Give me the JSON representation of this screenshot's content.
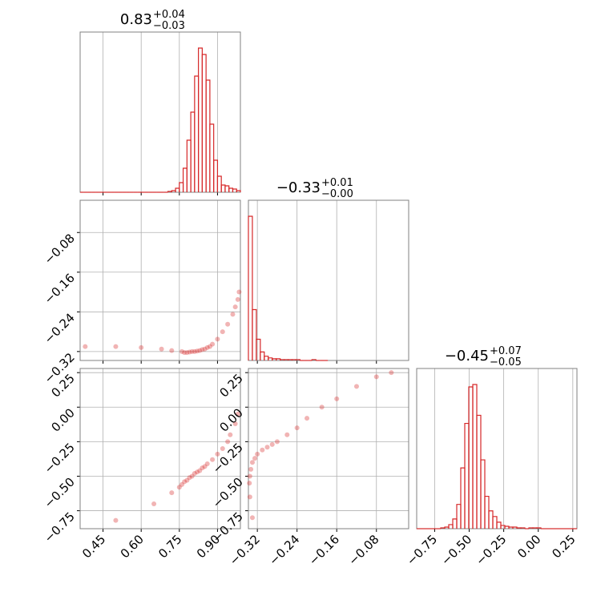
{
  "chart_data": [
    {
      "type": "histogram",
      "title": {
        "value": "0.83",
        "plus": "+0.04",
        "minus": "−0.03"
      },
      "color": "#d62728",
      "xlim": [
        0.36,
        0.99
      ],
      "xticks": [
        0.45,
        {
          "value": 0.6,
          "label": "0.60"
        },
        0.75,
        {
          "value": 0.9,
          "label": "0.90"
        }
      ],
      "tick_labels": false,
      "grid": true,
      "bins": [
        0.36,
        0.375,
        0.39,
        0.405,
        0.42,
        0.435,
        0.45,
        0.465,
        0.48,
        0.495,
        0.51,
        0.525,
        0.54,
        0.555,
        0.57,
        0.585,
        0.6,
        0.615,
        0.63,
        0.645,
        0.66,
        0.675,
        0.69,
        0.705,
        0.72,
        0.735,
        0.75,
        0.765,
        0.78,
        0.795,
        0.81,
        0.825,
        0.84,
        0.855,
        0.87,
        0.885,
        0.9,
        0.915,
        0.93,
        0.945,
        0.96,
        0.975,
        0.99
      ],
      "counts": [
        0,
        0,
        0,
        0,
        0,
        0,
        0,
        0,
        0,
        0,
        0,
        0,
        0,
        0,
        0,
        0,
        0,
        0,
        0,
        0,
        0,
        0,
        0,
        1,
        2,
        5,
        12,
        30,
        65,
        100,
        145,
        180,
        172,
        140,
        85,
        40,
        20,
        9,
        8,
        5,
        4,
        2
      ]
    },
    {
      "type": "scatter",
      "color": "#d62728",
      "grid": true,
      "xlim": [
        0.36,
        0.99
      ],
      "xticks": [
        0.45,
        {
          "value": 0.6,
          "label": "0.60"
        },
        0.75,
        {
          "value": 0.9,
          "label": "0.90"
        }
      ],
      "tick_labels": false,
      "ylim": [
        -0.338,
        -0.015
      ],
      "yticks": [
        {
          "value": -0.32,
          "label": "−0.32"
        },
        {
          "value": -0.24,
          "label": "−0.24"
        },
        {
          "value": -0.16,
          "label": "−0.16"
        },
        {
          "value": -0.08,
          "label": "−0.08"
        }
      ],
      "x": [
        0.38,
        0.5,
        0.6,
        0.68,
        0.72,
        0.76,
        0.77,
        0.78,
        0.79,
        0.8,
        0.81,
        0.82,
        0.83,
        0.84,
        0.85,
        0.86,
        0.87,
        0.88,
        0.9,
        0.92,
        0.94,
        0.96,
        0.97,
        0.98,
        0.985
      ],
      "y": [
        -0.31,
        -0.31,
        -0.312,
        -0.315,
        -0.318,
        -0.32,
        -0.322,
        -0.322,
        -0.321,
        -0.32,
        -0.32,
        -0.319,
        -0.318,
        -0.316,
        -0.315,
        -0.312,
        -0.31,
        -0.305,
        -0.295,
        -0.28,
        -0.265,
        -0.245,
        -0.23,
        -0.215,
        -0.2
      ]
    },
    {
      "type": "histogram",
      "title": {
        "value": "−0.33",
        "plus": "+0.01",
        "minus": "−0.00"
      },
      "color": "#d62728",
      "xlim": [
        -0.338,
        -0.015
      ],
      "xticks": [
        {
          "value": -0.32,
          "label": "−0.32"
        },
        {
          "value": -0.24,
          "label": "−0.24"
        },
        {
          "value": -0.16,
          "label": "−0.16"
        },
        {
          "value": -0.08,
          "label": "−0.08"
        }
      ],
      "tick_labels": false,
      "grid": true,
      "bins": [
        -0.338,
        -0.33,
        -0.322,
        -0.314,
        -0.306,
        -0.298,
        -0.29,
        -0.282,
        -0.274,
        -0.266,
        -0.258,
        -0.25,
        -0.242,
        -0.234,
        -0.226,
        -0.218,
        -0.21,
        -0.202,
        -0.194,
        -0.186,
        -0.178
      ],
      "counts": [
        170,
        60,
        25,
        10,
        5,
        3,
        2,
        2,
        1,
        1,
        1,
        1,
        1,
        0,
        0,
        0,
        1,
        0,
        0,
        0
      ]
    },
    {
      "type": "scatter",
      "color": "#d62728",
      "grid": true,
      "xlim": [
        0.36,
        0.99
      ],
      "xticks": [
        0.45,
        {
          "value": 0.6,
          "label": "0.60"
        },
        0.75,
        {
          "value": 0.9,
          "label": "0.90"
        }
      ],
      "tick_labels": true,
      "ylim": [
        -0.88,
        0.28
      ],
      "yticks": [
        {
          "value": -0.75,
          "label": "−0.75"
        },
        {
          "value": -0.5,
          "label": "−0.50"
        },
        {
          "value": -0.25,
          "label": "−0.25"
        },
        {
          "value": 0,
          "label": "0.00"
        },
        0.25
      ],
      "x": [
        0.5,
        0.65,
        0.72,
        0.75,
        0.76,
        0.77,
        0.78,
        0.79,
        0.8,
        0.81,
        0.82,
        0.83,
        0.84,
        0.85,
        0.86,
        0.88,
        0.9,
        0.92,
        0.94,
        0.95,
        0.97,
        0.98
      ],
      "y": [
        -0.82,
        -0.7,
        -0.62,
        -0.58,
        -0.56,
        -0.54,
        -0.53,
        -0.51,
        -0.5,
        -0.48,
        -0.47,
        -0.46,
        -0.44,
        -0.43,
        -0.41,
        -0.38,
        -0.34,
        -0.3,
        -0.25,
        -0.2,
        -0.12,
        -0.05
      ]
    },
    {
      "type": "scatter",
      "color": "#d62728",
      "grid": true,
      "xlim": [
        -0.338,
        -0.015
      ],
      "xticks": [
        {
          "value": -0.32,
          "label": "−0.32"
        },
        {
          "value": -0.24,
          "label": "−0.24"
        },
        {
          "value": -0.16,
          "label": "−0.16"
        },
        {
          "value": -0.08,
          "label": "−0.08"
        }
      ],
      "tick_labels": true,
      "ylim": [
        -0.88,
        0.28
      ],
      "yticks": [
        {
          "value": -0.75,
          "label": "−0.75"
        },
        {
          "value": -0.5,
          "label": "−0.50"
        },
        {
          "value": -0.25,
          "label": "−0.25"
        },
        {
          "value": 0,
          "label": "0.00"
        },
        0.25
      ],
      "x": [
        -0.33,
        -0.335,
        -0.336,
        -0.335,
        -0.333,
        -0.33,
        -0.325,
        -0.32,
        -0.31,
        -0.3,
        -0.29,
        -0.28,
        -0.26,
        -0.24,
        -0.22,
        -0.19,
        -0.16,
        -0.12,
        -0.08,
        -0.05
      ],
      "y": [
        -0.8,
        -0.65,
        -0.55,
        -0.5,
        -0.45,
        -0.4,
        -0.37,
        -0.34,
        -0.31,
        -0.29,
        -0.27,
        -0.25,
        -0.2,
        -0.15,
        -0.08,
        0.0,
        0.06,
        0.15,
        0.22,
        0.25
      ]
    },
    {
      "type": "histogram",
      "title": {
        "value": "−0.45",
        "plus": "+0.07",
        "minus": "−0.05"
      },
      "color": "#d62728",
      "xlim": [
        -0.88,
        0.28
      ],
      "xticks": [
        {
          "value": -0.75,
          "label": "−0.75"
        },
        {
          "value": -0.5,
          "label": "−0.50"
        },
        {
          "value": -0.25,
          "label": "−0.25"
        },
        {
          "value": 0,
          "label": "0.00"
        },
        0.25
      ],
      "tick_labels": true,
      "grid": true,
      "bins": [
        -0.88,
        -0.851,
        -0.822,
        -0.793,
        -0.764,
        -0.735,
        -0.706,
        -0.677,
        -0.648,
        -0.619,
        -0.59,
        -0.561,
        -0.532,
        -0.503,
        -0.474,
        -0.445,
        -0.416,
        -0.387,
        -0.358,
        -0.329,
        -0.3,
        -0.271,
        -0.242,
        -0.213,
        -0.184,
        -0.155,
        -0.126,
        -0.097,
        -0.068,
        -0.039,
        -0.01,
        0.019,
        0.048,
        0.077,
        0.106,
        0.135,
        0.164,
        0.193,
        0.222,
        0.251,
        0.28
      ],
      "counts": [
        0,
        0,
        0,
        0,
        0,
        0,
        1,
        2,
        5,
        12,
        30,
        75,
        130,
        175,
        178,
        140,
        85,
        40,
        22,
        15,
        8,
        4,
        3,
        2,
        2,
        1,
        1,
        0,
        1,
        1,
        1,
        0,
        0,
        0,
        0,
        0,
        0,
        0,
        0,
        0
      ]
    }
  ]
}
